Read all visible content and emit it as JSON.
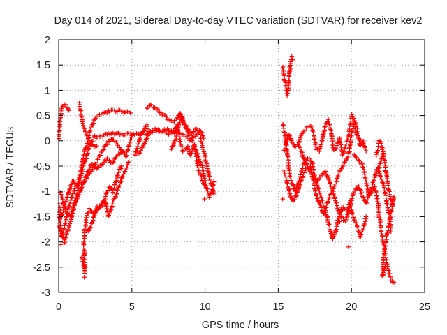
{
  "chart_data": {
    "type": "scatter",
    "title": "Day 014 of 2021, Sidereal Day-to-day VTEC variation (SDTVAR) for receiver kev2",
    "xlabel": "GPS time / hours",
    "ylabel": "SDTVAR / TECUs",
    "xlim": [
      0,
      25
    ],
    "ylim": [
      -3,
      2
    ],
    "xticks": [
      0,
      5,
      10,
      15,
      20,
      25
    ],
    "yticks": [
      2,
      1.5,
      1,
      0.5,
      0,
      -0.5,
      -1,
      -1.5,
      -2,
      -2.5,
      -3
    ],
    "xtick_labels": [
      "0",
      "5",
      "10",
      "15",
      "20",
      "25"
    ],
    "ytick_labels": [
      "2",
      "1.5",
      "1",
      "0.5",
      "0",
      "-0.5",
      "-1",
      "-1.5",
      "-2",
      "-2.5",
      "-3"
    ],
    "grid": true,
    "marker": "+",
    "color": "#ff0000",
    "tracks": [
      [
        [
          0.0,
          0.0
        ],
        [
          0.1,
          0.4
        ],
        [
          0.2,
          0.65
        ],
        [
          0.4,
          0.72
        ],
        [
          0.6,
          0.65
        ],
        [
          0.7,
          0.6
        ]
      ],
      [
        [
          0.0,
          -1.2
        ],
        [
          0.2,
          -1.5
        ],
        [
          0.4,
          -1.3
        ],
        [
          0.6,
          -1.1
        ],
        [
          0.8,
          -0.9
        ],
        [
          1.0,
          -0.8
        ],
        [
          1.3,
          -0.9
        ],
        [
          1.5,
          -0.7
        ],
        [
          1.8,
          -0.4
        ],
        [
          2.1,
          -0.1
        ],
        [
          2.5,
          0.1
        ],
        [
          3.0,
          0.1
        ],
        [
          3.5,
          0.15
        ],
        [
          4.0,
          0.15
        ],
        [
          4.5,
          0.13
        ],
        [
          5.0,
          0.15
        ],
        [
          5.5,
          0.12
        ],
        [
          6.0,
          0.15
        ],
        [
          6.5,
          0.2
        ],
        [
          7.0,
          0.18
        ],
        [
          7.5,
          0.15
        ],
        [
          8.0,
          0.18
        ],
        [
          8.5,
          0.12
        ],
        [
          9.0,
          0.05
        ],
        [
          9.3,
          -0.1
        ],
        [
          9.6,
          -0.4
        ],
        [
          9.8,
          -0.5
        ],
        [
          10.0,
          -0.8
        ],
        [
          10.3,
          -1.1
        ],
        [
          10.5,
          -1.0
        ],
        [
          10.6,
          -0.8
        ]
      ],
      [
        [
          0.0,
          -1.6
        ],
        [
          0.2,
          -1.9
        ],
        [
          0.4,
          -1.7
        ],
        [
          0.6,
          -1.4
        ],
        [
          0.8,
          -1.2
        ],
        [
          1.0,
          -1.0
        ],
        [
          1.3,
          -0.85
        ],
        [
          1.5,
          -0.6
        ],
        [
          1.7,
          -0.3
        ],
        [
          2.0,
          0.0
        ],
        [
          2.2,
          0.25
        ],
        [
          2.5,
          0.45
        ],
        [
          3.0,
          0.55
        ],
        [
          3.5,
          0.58
        ],
        [
          4.0,
          0.6
        ],
        [
          4.5,
          0.58
        ],
        [
          4.9,
          0.55
        ]
      ],
      [
        [
          0.1,
          -1.0
        ],
        [
          0.3,
          -1.2
        ],
        [
          0.5,
          -1.4
        ],
        [
          0.8,
          -1.5
        ],
        [
          1.0,
          -1.3
        ],
        [
          1.3,
          -1.1
        ],
        [
          1.6,
          -0.9
        ],
        [
          2.0,
          -0.7
        ],
        [
          2.4,
          -0.5
        ],
        [
          2.8,
          -0.3
        ],
        [
          3.2,
          -0.1
        ],
        [
          3.6,
          0.05
        ],
        [
          4.0,
          -0.05
        ],
        [
          4.3,
          -0.2
        ],
        [
          4.6,
          -0.3
        ],
        [
          4.8,
          -0.1
        ],
        [
          5.0,
          0.1
        ]
      ],
      [
        [
          0.0,
          -1.4
        ],
        [
          0.2,
          -1.8
        ],
        [
          0.4,
          -2.0
        ],
        [
          0.6,
          -1.8
        ],
        [
          0.8,
          -1.6
        ],
        [
          1.0,
          -1.4
        ],
        [
          1.2,
          -1.1
        ],
        [
          1.4,
          -0.9
        ],
        [
          1.7,
          -0.8
        ],
        [
          2.0,
          -0.6
        ],
        [
          2.3,
          -0.45
        ],
        [
          2.6,
          -0.55
        ],
        [
          3.0,
          -0.45
        ],
        [
          3.3,
          -0.35
        ],
        [
          3.6,
          -0.45
        ],
        [
          4.0,
          -0.3
        ],
        [
          4.4,
          -0.2
        ]
      ],
      [
        [
          1.4,
          0.75
        ],
        [
          1.6,
          0.4
        ],
        [
          1.8,
          0.2
        ],
        [
          2.0,
          0.05
        ],
        [
          2.3,
          -0.1
        ],
        [
          2.6,
          -0.1
        ]
      ],
      [
        [
          1.6,
          -2.3
        ],
        [
          1.8,
          -2.6
        ],
        [
          1.7,
          -2.0
        ],
        [
          1.9,
          -1.5
        ],
        [
          2.1,
          -1.35
        ],
        [
          2.4,
          -1.45
        ],
        [
          2.6,
          -1.4
        ],
        [
          2.9,
          -1.25
        ],
        [
          3.2,
          -1.2
        ],
        [
          3.4,
          -1.5
        ],
        [
          3.6,
          -1.3
        ],
        [
          3.8,
          -1.15
        ],
        [
          4.0,
          -1.0
        ],
        [
          4.3,
          -0.75
        ],
        [
          4.6,
          -0.55
        ],
        [
          4.8,
          -0.4
        ]
      ],
      [
        [
          2.0,
          -1.8
        ],
        [
          2.3,
          -1.6
        ],
        [
          2.6,
          -1.3
        ],
        [
          2.9,
          -1.3
        ],
        [
          3.2,
          -1.1
        ],
        [
          3.5,
          -0.9
        ],
        [
          3.7,
          -1.0
        ],
        [
          3.9,
          -0.8
        ],
        [
          4.1,
          -0.6
        ],
        [
          4.3,
          -0.5
        ]
      ],
      [
        [
          5.2,
          -0.3
        ],
        [
          5.4,
          -0.1
        ],
        [
          5.6,
          0.1
        ],
        [
          5.8,
          0.2
        ],
        [
          6.0,
          0.3
        ],
        [
          6.1,
          0.1
        ]
      ],
      [
        [
          6.0,
          0.65
        ],
        [
          6.3,
          0.72
        ],
        [
          6.6,
          0.65
        ],
        [
          7.0,
          0.55
        ],
        [
          7.4,
          0.45
        ],
        [
          7.8,
          0.38
        ],
        [
          8.1,
          0.45
        ],
        [
          8.3,
          0.55
        ],
        [
          8.5,
          0.4
        ],
        [
          8.8,
          0.25
        ],
        [
          9.1,
          0.15
        ],
        [
          9.4,
          0.25
        ],
        [
          9.7,
          0.2
        ],
        [
          9.9,
          0.05
        ]
      ],
      [
        [
          5.5,
          -0.25
        ],
        [
          5.8,
          -0.1
        ],
        [
          6.2,
          0.2
        ],
        [
          6.6,
          0.25
        ],
        [
          7.0,
          0.2
        ],
        [
          7.4,
          0.22
        ],
        [
          7.8,
          0.18
        ],
        [
          8.1,
          0.3
        ],
        [
          8.3,
          0.0
        ],
        [
          8.5,
          -0.2
        ],
        [
          8.8,
          -0.1
        ],
        [
          9.0,
          -0.3
        ],
        [
          9.2,
          -0.1
        ],
        [
          9.4,
          -0.3
        ],
        [
          9.5,
          -0.5
        ],
        [
          9.7,
          -0.7
        ],
        [
          9.9,
          -0.85
        ],
        [
          10.1,
          -0.95
        ]
      ],
      [
        [
          7.7,
          -0.15
        ],
        [
          8.0,
          0.05
        ],
        [
          8.2,
          0.3
        ],
        [
          8.4,
          0.5
        ],
        [
          8.6,
          0.3
        ],
        [
          8.8,
          0.2
        ],
        [
          9.0,
          0.0
        ],
        [
          9.3,
          0.1
        ],
        [
          9.6,
          0.2
        ],
        [
          9.8,
          -0.1
        ],
        [
          10.0,
          -0.3
        ],
        [
          10.2,
          -0.6
        ],
        [
          10.4,
          -0.85
        ],
        [
          10.6,
          -1.05
        ]
      ],
      [
        [
          15.3,
          1.45
        ],
        [
          15.5,
          1.1
        ],
        [
          15.6,
          0.9
        ],
        [
          15.7,
          1.05
        ],
        [
          15.8,
          1.5
        ],
        [
          15.9,
          1.65
        ],
        [
          16.0,
          1.6
        ]
      ],
      [
        [
          15.3,
          0.35
        ],
        [
          15.5,
          0.05
        ],
        [
          15.6,
          -0.2
        ],
        [
          15.7,
          -0.45
        ],
        [
          15.8,
          -0.7
        ],
        [
          16.0,
          -0.9
        ],
        [
          16.2,
          -1.0
        ],
        [
          16.4,
          -0.8
        ],
        [
          16.6,
          -0.6
        ],
        [
          16.8,
          -0.4
        ],
        [
          17.0,
          -0.35
        ],
        [
          17.3,
          -0.4
        ],
        [
          17.5,
          -0.7
        ],
        [
          17.7,
          -0.9
        ],
        [
          18.0,
          -1.2
        ],
        [
          18.2,
          -1.4
        ],
        [
          18.5,
          -1.7
        ],
        [
          18.7,
          -1.95
        ],
        [
          18.9,
          -1.8
        ],
        [
          19.1,
          -1.55
        ],
        [
          19.4,
          -1.3
        ],
        [
          19.7,
          -1.4
        ],
        [
          19.9,
          -1.2
        ],
        [
          20.1,
          -1.5
        ],
        [
          20.4,
          -1.7
        ],
        [
          20.6,
          -1.9
        ],
        [
          20.8,
          -1.75
        ],
        [
          21.0,
          -1.5
        ]
      ],
      [
        [
          15.4,
          -0.6
        ],
        [
          15.6,
          -0.8
        ],
        [
          15.8,
          -1.05
        ],
        [
          16.0,
          -1.2
        ],
        [
          16.2,
          -1.1
        ],
        [
          16.4,
          -0.95
        ],
        [
          16.6,
          -0.75
        ],
        [
          16.9,
          -0.55
        ],
        [
          17.2,
          -0.5
        ],
        [
          17.4,
          -0.8
        ],
        [
          17.6,
          -1.1
        ],
        [
          17.9,
          -1.3
        ],
        [
          18.1,
          -1.45
        ],
        [
          18.3,
          -1.3
        ],
        [
          18.6,
          -1.05
        ],
        [
          18.9,
          -0.85
        ],
        [
          19.2,
          -0.6
        ],
        [
          19.5,
          -0.45
        ],
        [
          19.8,
          -0.3
        ],
        [
          20.0,
          0.15
        ],
        [
          20.2,
          0.3
        ],
        [
          20.4,
          0.1
        ],
        [
          20.6,
          0.0
        ]
      ],
      [
        [
          15.4,
          -0.2
        ],
        [
          15.7,
          0.15
        ],
        [
          15.9,
          0.0
        ],
        [
          16.1,
          -0.1
        ],
        [
          16.4,
          -0.05
        ],
        [
          16.6,
          0.15
        ],
        [
          16.9,
          0.25
        ],
        [
          17.2,
          0.3
        ],
        [
          17.4,
          0.15
        ],
        [
          17.6,
          -0.15
        ],
        [
          17.8,
          -0.2
        ],
        [
          18.0,
          0.0
        ],
        [
          18.2,
          0.3
        ],
        [
          18.4,
          0.4
        ],
        [
          18.6,
          0.2
        ],
        [
          18.8,
          -0.2
        ],
        [
          19.0,
          -0.1
        ],
        [
          19.2,
          0.05
        ],
        [
          19.4,
          -0.3
        ],
        [
          19.6,
          -0.1
        ],
        [
          19.8,
          0.1
        ],
        [
          20.0,
          0.5
        ],
        [
          20.2,
          0.4
        ],
        [
          20.4,
          0.2
        ],
        [
          20.6,
          -0.1
        ],
        [
          20.8,
          0.0
        ],
        [
          21.0,
          -0.2
        ]
      ],
      [
        [
          16.4,
          -0.1
        ],
        [
          16.7,
          -0.3
        ],
        [
          17.0,
          -0.5
        ],
        [
          17.3,
          -0.65
        ],
        [
          17.6,
          -0.8
        ],
        [
          17.9,
          -0.7
        ],
        [
          18.2,
          -0.6
        ],
        [
          18.5,
          -0.8
        ],
        [
          18.8,
          -1.05
        ],
        [
          19.0,
          -1.3
        ],
        [
          19.3,
          -1.5
        ],
        [
          19.6,
          -1.6
        ],
        [
          19.9,
          -1.3
        ],
        [
          20.2,
          -1.0
        ],
        [
          20.5,
          -0.9
        ],
        [
          20.7,
          -1.05
        ],
        [
          21.0,
          -1.25
        ],
        [
          21.3,
          -1.0
        ],
        [
          21.5,
          -0.8
        ],
        [
          21.7,
          -0.6
        ],
        [
          21.9,
          -0.5
        ],
        [
          22.1,
          -0.3
        ]
      ],
      [
        [
          20.2,
          -0.3
        ],
        [
          20.5,
          -0.4
        ],
        [
          20.8,
          -0.5
        ],
        [
          21.0,
          -0.8
        ],
        [
          21.2,
          -1.1
        ],
        [
          21.4,
          -1.0
        ],
        [
          21.6,
          -0.9
        ],
        [
          21.8,
          -1.2
        ],
        [
          21.9,
          -1.5
        ],
        [
          22.1,
          -1.9
        ],
        [
          22.3,
          -2.2
        ],
        [
          22.5,
          -2.55
        ],
        [
          22.7,
          -2.75
        ],
        [
          22.9,
          -2.8
        ]
      ],
      [
        [
          21.7,
          -0.3
        ],
        [
          21.9,
          0.0
        ],
        [
          22.1,
          -0.1
        ],
        [
          22.3,
          -0.5
        ],
        [
          22.5,
          -0.9
        ],
        [
          22.7,
          -1.15
        ],
        [
          22.8,
          -1.3
        ],
        [
          22.9,
          -1.1
        ],
        [
          22.6,
          -1.6
        ],
        [
          22.4,
          -1.9
        ],
        [
          22.2,
          -2.3
        ],
        [
          22.1,
          -2.7
        ],
        [
          22.3,
          -2.5
        ]
      ],
      [
        [
          21.8,
          -0.55
        ],
        [
          22.0,
          -0.7
        ],
        [
          22.2,
          -0.9
        ],
        [
          22.4,
          -1.2
        ],
        [
          22.6,
          -1.5
        ],
        [
          22.7,
          -1.8
        ]
      ]
    ],
    "isolated_points": [
      [
        1.75,
        -2.7
      ],
      [
        1.8,
        -2.5
      ],
      [
        19.0,
        -1.8
      ],
      [
        19.2,
        -1.6
      ],
      [
        19.8,
        -2.1
      ],
      [
        18.4,
        -1.5
      ],
      [
        15.3,
        -1.15
      ],
      [
        9.95,
        -1.15
      ],
      [
        0.15,
        -2.05
      ]
    ]
  }
}
